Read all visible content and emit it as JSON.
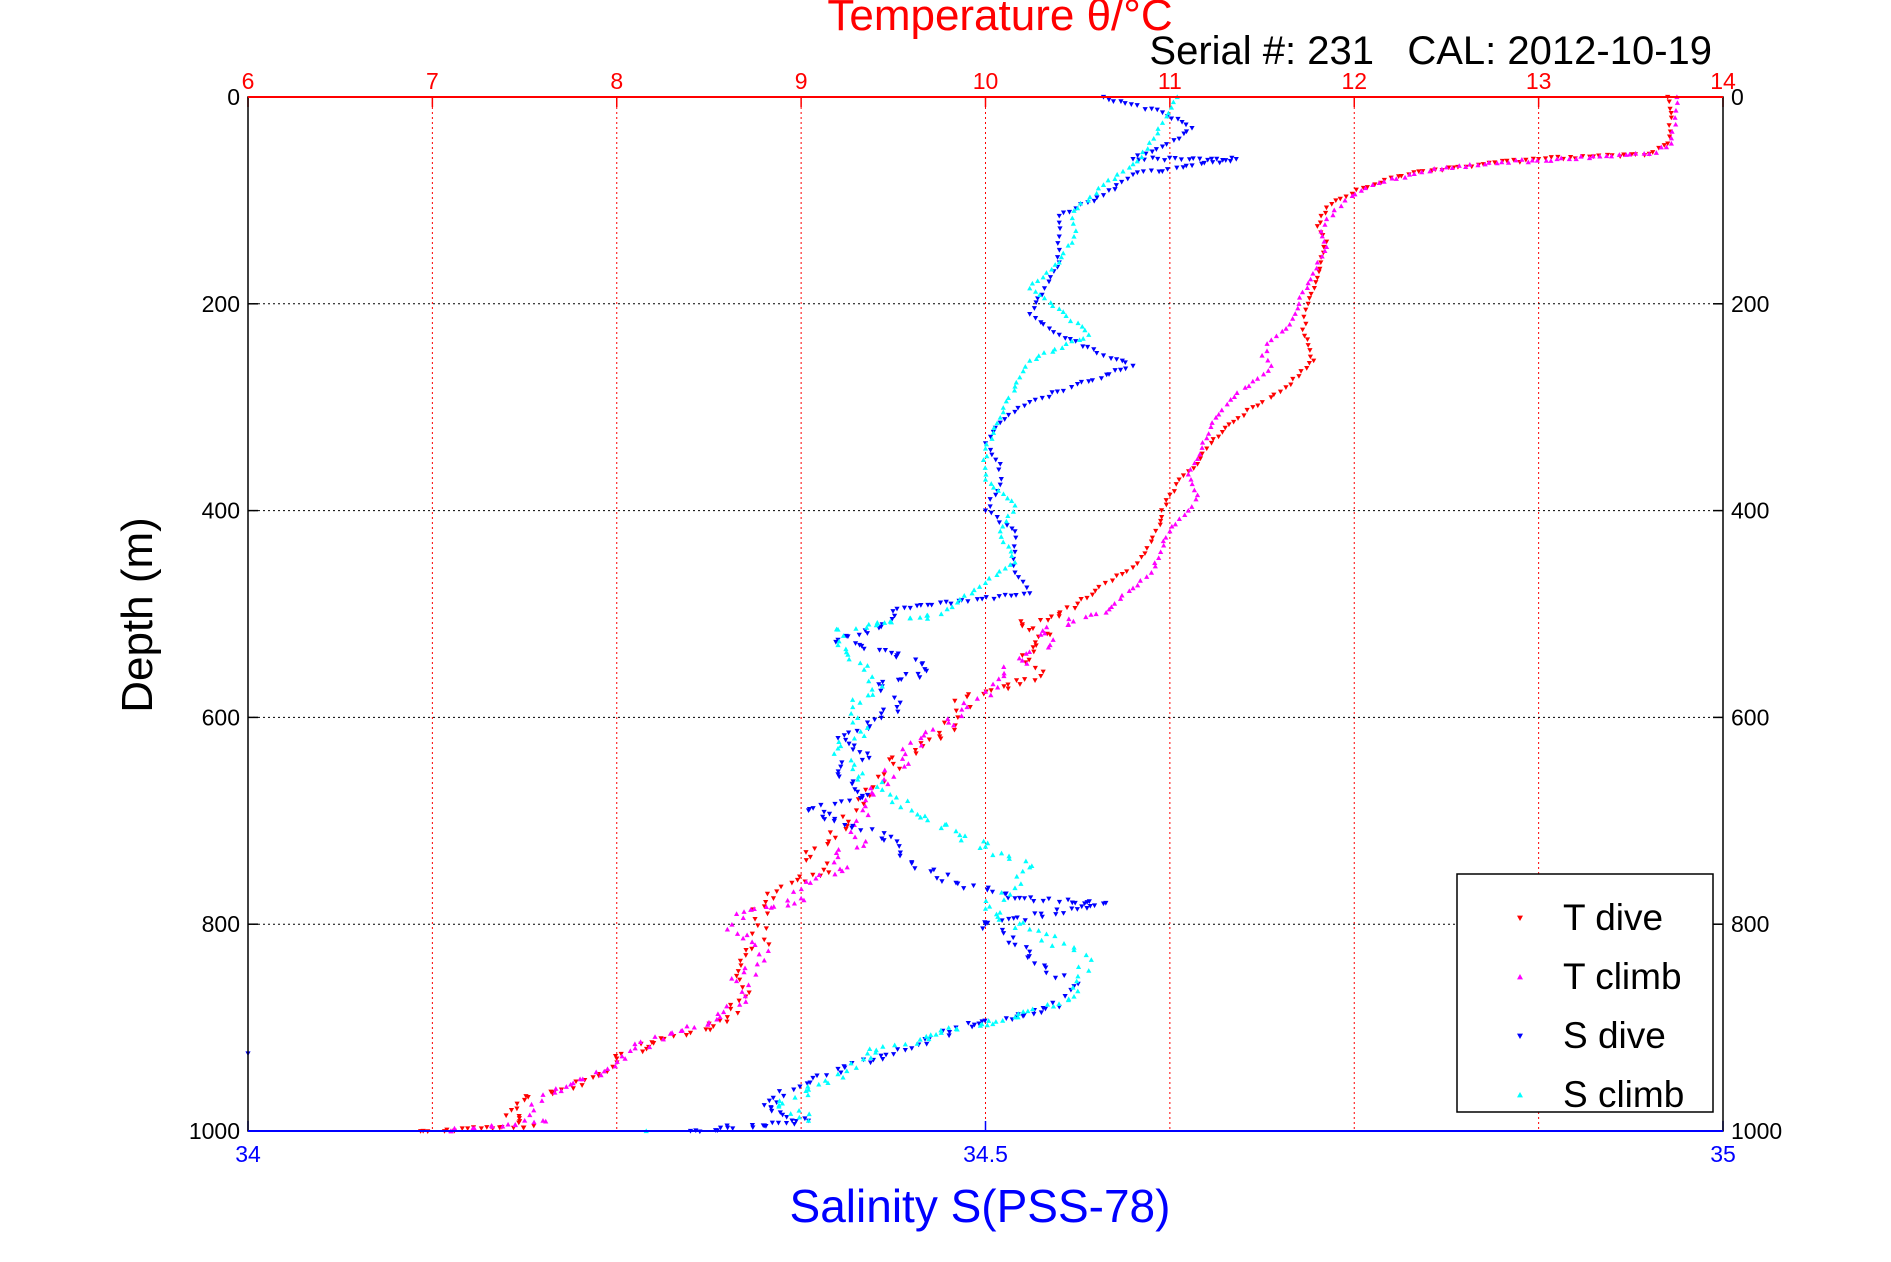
{
  "chart_data": {
    "type": "scatter",
    "title": "Temperature θ/°C",
    "subtitle": "Serial #: 231   CAL: 2012-10-19",
    "ylabel": "Depth (m)",
    "xlabel": "Salinity S(PSS-78)",
    "top_axis": {
      "label": "Temperature θ/°C",
      "range": [
        6,
        14
      ],
      "ticks": [
        "6",
        "7",
        "8",
        "9",
        "10",
        "11",
        "12",
        "13",
        "14"
      ],
      "color": "#ff0000",
      "grid": true
    },
    "bottom_axis": {
      "label": "Salinity S(PSS-78)",
      "range": [
        34,
        35
      ],
      "ticks": [
        "34",
        "34.5",
        "35"
      ],
      "color": "#0000ff"
    },
    "y_axis": {
      "range": [
        0,
        1000
      ],
      "reversed": true,
      "ticks": [
        "0",
        "200",
        "400",
        "600",
        "800",
        "1000"
      ],
      "grid": true
    },
    "legend_position": "bottom-right",
    "series": [
      {
        "name": "T dive",
        "color": "#ff0000",
        "marker": "down-triangle",
        "axis": "top",
        "points": [
          [
            13.7,
            0
          ],
          [
            13.72,
            20
          ],
          [
            13.7,
            45
          ],
          [
            13.6,
            55
          ],
          [
            13.0,
            60
          ],
          [
            12.7,
            65
          ],
          [
            12.35,
            72
          ],
          [
            12.2,
            78
          ],
          [
            12.05,
            88
          ],
          [
            11.9,
            100
          ],
          [
            11.82,
            115
          ],
          [
            11.8,
            125
          ],
          [
            11.85,
            140
          ],
          [
            11.82,
            155
          ],
          [
            11.8,
            175
          ],
          [
            11.75,
            200
          ],
          [
            11.72,
            225
          ],
          [
            11.75,
            240
          ],
          [
            11.78,
            255
          ],
          [
            11.7,
            270
          ],
          [
            11.6,
            285
          ],
          [
            11.45,
            300
          ],
          [
            11.3,
            320
          ],
          [
            11.2,
            340
          ],
          [
            11.15,
            355
          ],
          [
            11.05,
            370
          ],
          [
            10.98,
            390
          ],
          [
            10.95,
            410
          ],
          [
            10.9,
            430
          ],
          [
            10.8,
            455
          ],
          [
            10.65,
            470
          ],
          [
            10.5,
            490
          ],
          [
            10.4,
            500
          ],
          [
            10.2,
            510
          ],
          [
            10.35,
            520
          ],
          [
            10.2,
            540
          ],
          [
            10.3,
            560
          ],
          [
            10.1,
            570
          ],
          [
            9.9,
            580
          ],
          [
            9.85,
            600
          ],
          [
            9.75,
            615
          ],
          [
            9.65,
            625
          ],
          [
            9.5,
            645
          ],
          [
            9.45,
            655
          ],
          [
            9.35,
            670
          ],
          [
            9.3,
            690
          ],
          [
            9.25,
            705
          ],
          [
            9.15,
            720
          ],
          [
            9.05,
            735
          ],
          [
            9.15,
            750
          ],
          [
            8.95,
            760
          ],
          [
            8.85,
            775
          ],
          [
            8.75,
            795
          ],
          [
            8.8,
            815
          ],
          [
            8.7,
            830
          ],
          [
            8.65,
            850
          ],
          [
            8.7,
            870
          ],
          [
            8.6,
            890
          ],
          [
            8.4,
            905
          ],
          [
            8.2,
            915
          ],
          [
            8.0,
            930
          ],
          [
            7.9,
            945
          ],
          [
            7.7,
            960
          ],
          [
            7.5,
            970
          ],
          [
            7.4,
            985
          ],
          [
            7.55,
            995
          ],
          [
            6.95,
            1000
          ]
        ]
      },
      {
        "name": "T climb",
        "color": "#ff00ff",
        "marker": "up-triangle",
        "axis": "top",
        "points": [
          [
            13.75,
            0
          ],
          [
            13.74,
            20
          ],
          [
            13.72,
            45
          ],
          [
            13.6,
            55
          ],
          [
            13.1,
            60
          ],
          [
            12.8,
            63
          ],
          [
            12.5,
            68
          ],
          [
            12.3,
            75
          ],
          [
            12.1,
            85
          ],
          [
            11.95,
            100
          ],
          [
            11.85,
            118
          ],
          [
            11.82,
            130
          ],
          [
            11.85,
            145
          ],
          [
            11.8,
            160
          ],
          [
            11.75,
            180
          ],
          [
            11.7,
            200
          ],
          [
            11.65,
            220
          ],
          [
            11.55,
            235
          ],
          [
            11.5,
            250
          ],
          [
            11.55,
            260
          ],
          [
            11.45,
            275
          ],
          [
            11.35,
            290
          ],
          [
            11.25,
            310
          ],
          [
            11.2,
            330
          ],
          [
            11.15,
            350
          ],
          [
            11.1,
            365
          ],
          [
            11.15,
            385
          ],
          [
            11.1,
            400
          ],
          [
            11.0,
            420
          ],
          [
            10.95,
            440
          ],
          [
            10.9,
            460
          ],
          [
            10.8,
            475
          ],
          [
            10.7,
            490
          ],
          [
            10.6,
            500
          ],
          [
            10.45,
            510
          ],
          [
            10.3,
            520
          ],
          [
            10.35,
            530
          ],
          [
            10.2,
            545
          ],
          [
            10.1,
            560
          ],
          [
            10.0,
            575
          ],
          [
            9.9,
            590
          ],
          [
            9.8,
            605
          ],
          [
            9.65,
            620
          ],
          [
            9.55,
            640
          ],
          [
            9.45,
            660
          ],
          [
            9.35,
            680
          ],
          [
            9.3,
            700
          ],
          [
            9.35,
            720
          ],
          [
            9.2,
            735
          ],
          [
            9.25,
            745
          ],
          [
            9.05,
            760
          ],
          [
            9.0,
            775
          ],
          [
            8.65,
            790
          ],
          [
            8.6,
            805
          ],
          [
            8.75,
            820
          ],
          [
            8.8,
            835
          ],
          [
            8.65,
            855
          ],
          [
            8.7,
            875
          ],
          [
            8.5,
            895
          ],
          [
            8.3,
            905
          ],
          [
            8.1,
            920
          ],
          [
            7.95,
            940
          ],
          [
            7.75,
            955
          ],
          [
            7.6,
            965
          ],
          [
            7.55,
            980
          ],
          [
            7.6,
            990
          ],
          [
            7.1,
            1000
          ]
        ]
      },
      {
        "name": "S dive",
        "color": "#0000ff",
        "marker": "down-triangle",
        "axis": "bottom",
        "points": [
          [
            34.58,
            0
          ],
          [
            34.62,
            15
          ],
          [
            34.64,
            30
          ],
          [
            34.62,
            48
          ],
          [
            34.6,
            60
          ],
          [
            34.67,
            60
          ],
          [
            34.6,
            75
          ],
          [
            34.58,
            95
          ],
          [
            34.55,
            115
          ],
          [
            34.55,
            135
          ],
          [
            34.55,
            160
          ],
          [
            34.54,
            185
          ],
          [
            34.53,
            210
          ],
          [
            34.55,
            230
          ],
          [
            34.58,
            250
          ],
          [
            34.6,
            260
          ],
          [
            34.57,
            275
          ],
          [
            34.53,
            295
          ],
          [
            34.51,
            315
          ],
          [
            34.5,
            335
          ],
          [
            34.51,
            355
          ],
          [
            34.51,
            375
          ],
          [
            34.5,
            400
          ],
          [
            34.52,
            420
          ],
          [
            34.52,
            440
          ],
          [
            34.52,
            460
          ],
          [
            34.53,
            480
          ],
          [
            34.44,
            495
          ],
          [
            34.43,
            510
          ],
          [
            34.4,
            525
          ],
          [
            34.44,
            540
          ],
          [
            34.46,
            555
          ],
          [
            34.43,
            570
          ],
          [
            34.44,
            590
          ],
          [
            34.42,
            605
          ],
          [
            34.4,
            620
          ],
          [
            34.42,
            635
          ],
          [
            34.4,
            655
          ],
          [
            34.42,
            675
          ],
          [
            34.38,
            690
          ],
          [
            34.41,
            705
          ],
          [
            34.44,
            720
          ],
          [
            34.45,
            740
          ],
          [
            34.48,
            760
          ],
          [
            34.52,
            775
          ],
          [
            34.58,
            780
          ],
          [
            34.5,
            800
          ],
          [
            34.52,
            820
          ],
          [
            34.54,
            840
          ],
          [
            34.56,
            860
          ],
          [
            34.55,
            880
          ],
          [
            34.48,
            900
          ],
          [
            34.45,
            920
          ],
          [
            34.4,
            940
          ],
          [
            34.37,
            960
          ],
          [
            34.35,
            975
          ],
          [
            34.38,
            990
          ],
          [
            34.3,
            1000
          ],
          [
            34.0,
            925
          ]
        ]
      },
      {
        "name": "S climb",
        "color": "#00ffff",
        "marker": "up-triangle",
        "axis": "bottom",
        "points": [
          [
            34.63,
            0
          ],
          [
            34.62,
            25
          ],
          [
            34.61,
            50
          ],
          [
            34.6,
            65
          ],
          [
            34.58,
            85
          ],
          [
            34.56,
            110
          ],
          [
            34.56,
            135
          ],
          [
            34.55,
            160
          ],
          [
            34.53,
            185
          ],
          [
            34.55,
            205
          ],
          [
            34.57,
            230
          ],
          [
            34.53,
            255
          ],
          [
            34.52,
            280
          ],
          [
            34.51,
            310
          ],
          [
            34.5,
            340
          ],
          [
            34.5,
            370
          ],
          [
            34.52,
            395
          ],
          [
            34.51,
            420
          ],
          [
            34.52,
            450
          ],
          [
            34.5,
            470
          ],
          [
            34.47,
            500
          ],
          [
            34.4,
            515
          ],
          [
            34.4,
            530
          ],
          [
            34.42,
            550
          ],
          [
            34.43,
            570
          ],
          [
            34.41,
            590
          ],
          [
            34.42,
            610
          ],
          [
            34.4,
            630
          ],
          [
            34.41,
            650
          ],
          [
            34.43,
            670
          ],
          [
            34.45,
            690
          ],
          [
            34.48,
            710
          ],
          [
            34.5,
            725
          ],
          [
            34.53,
            745
          ],
          [
            34.52,
            765
          ],
          [
            34.5,
            785
          ],
          [
            34.53,
            805
          ],
          [
            34.56,
            825
          ],
          [
            34.57,
            845
          ],
          [
            34.56,
            870
          ],
          [
            34.52,
            890
          ],
          [
            34.47,
            905
          ],
          [
            34.42,
            925
          ],
          [
            34.4,
            945
          ],
          [
            34.38,
            960
          ],
          [
            34.36,
            975
          ],
          [
            34.38,
            990
          ],
          [
            34.27,
            1000
          ]
        ]
      }
    ]
  }
}
